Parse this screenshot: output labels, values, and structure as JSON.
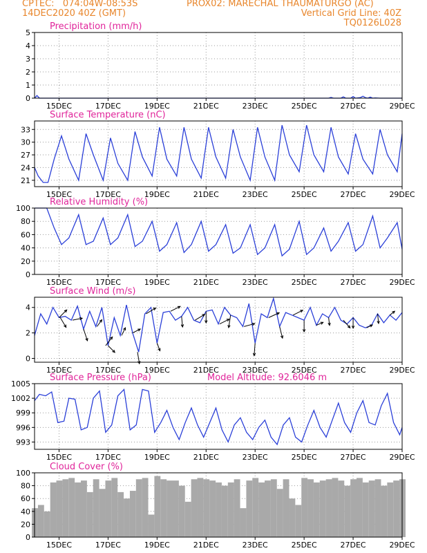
{
  "header": {
    "left_line1": "CPTEC:   074:04W-08:53S",
    "center_line1": "PROX02: MARECHAL THAUMATURGO (AC)",
    "left_line2": "14DEC2020 40Z (GMT)",
    "right_line2": "Vertical Grid Line: 40Z",
    "right_line3": "TQ0126L028"
  },
  "colors": {
    "header": "#e8862c",
    "title": "#e0249a",
    "line": "#2a3fd8",
    "arrow": "#000000",
    "bar": "#a9a9a9"
  },
  "chart_data": [
    {
      "type": "line",
      "title": "Precipitation (mm/h)",
      "ylim": [
        0,
        5
      ],
      "yticks": [
        0,
        1,
        2,
        3,
        4,
        5
      ],
      "xticks": [
        "15DEC",
        "17DEC",
        "19DEC",
        "21DEC",
        "23DEC",
        "25DEC",
        "27DEC",
        "29DEC"
      ],
      "x": [
        0,
        0.1,
        0.2,
        12.0,
        12.1,
        12.2,
        12.5,
        12.6,
        12.7,
        12.9,
        13.0,
        13.1,
        13.3,
        13.4,
        13.5,
        13.6,
        13.7,
        13.8,
        13.9,
        14.1,
        14.5,
        15
      ],
      "values": [
        0.0,
        0.2,
        0.0,
        0.0,
        0.06,
        0.0,
        0.0,
        0.1,
        0.0,
        0.0,
        0.12,
        0.0,
        0.05,
        0.15,
        0.04,
        0.0,
        0.08,
        0.0,
        0.02,
        0.0,
        0.0,
        0.0
      ]
    },
    {
      "type": "line",
      "title": "Surface Temperature (nC)",
      "ylim": [
        19.5,
        35
      ],
      "yticks": [
        21,
        24,
        27,
        30,
        33
      ],
      "xticks": [
        "15DEC",
        "17DEC",
        "19DEC",
        "21DEC",
        "23DEC",
        "25DEC",
        "27DEC",
        "29DEC"
      ],
      "x": [
        0,
        0.15,
        0.35,
        0.55,
        0.8,
        1.1,
        1.4,
        1.8,
        2.1,
        2.4,
        2.8,
        3.1,
        3.4,
        3.8,
        4.1,
        4.4,
        4.8,
        5.1,
        5.4,
        5.8,
        6.1,
        6.4,
        6.8,
        7.1,
        7.4,
        7.8,
        8.1,
        8.4,
        8.8,
        9.1,
        9.4,
        9.8,
        10.1,
        10.4,
        10.8,
        11.1,
        11.4,
        11.8,
        12.1,
        12.4,
        12.8,
        13.1,
        13.4,
        13.8,
        14.1,
        14.4,
        14.8,
        15
      ],
      "values": [
        24.0,
        22.0,
        20.5,
        20.5,
        26.0,
        31.5,
        26.0,
        21.0,
        32.0,
        27.0,
        21.0,
        31.0,
        25.0,
        21.0,
        32.5,
        26.5,
        22.0,
        33.5,
        26.0,
        22.0,
        33.5,
        26.0,
        21.5,
        33.5,
        26.5,
        21.5,
        33.0,
        26.5,
        21.0,
        33.5,
        26.5,
        21.0,
        34.0,
        27.0,
        23.0,
        34.0,
        27.0,
        23.0,
        33.5,
        26.5,
        22.5,
        32.0,
        26.0,
        22.5,
        33.0,
        27.0,
        23.0,
        32.0
      ]
    },
    {
      "type": "line",
      "title": "Relative Humidity (%)",
      "ylim": [
        0,
        100
      ],
      "yticks": [
        0,
        20,
        40,
        60,
        80,
        100
      ],
      "xticks": [
        "15DEC",
        "17DEC",
        "19DEC",
        "21DEC",
        "23DEC",
        "25DEC",
        "27DEC",
        "29DEC"
      ],
      "x": [
        0,
        0.3,
        0.5,
        0.8,
        1.1,
        1.4,
        1.8,
        2.1,
        2.4,
        2.8,
        3.1,
        3.4,
        3.8,
        4.1,
        4.4,
        4.8,
        5.1,
        5.4,
        5.8,
        6.1,
        6.4,
        6.8,
        7.1,
        7.4,
        7.8,
        8.1,
        8.4,
        8.8,
        9.1,
        9.4,
        9.8,
        10.1,
        10.4,
        10.8,
        11.1,
        11.4,
        11.8,
        12.1,
        12.4,
        12.8,
        13.1,
        13.4,
        13.8,
        14.1,
        14.4,
        14.8,
        15
      ],
      "values": [
        100,
        100,
        100,
        70,
        45,
        55,
        90,
        45,
        50,
        85,
        45,
        55,
        90,
        42,
        50,
        80,
        35,
        45,
        78,
        33,
        45,
        80,
        35,
        45,
        75,
        32,
        40,
        75,
        30,
        40,
        75,
        28,
        38,
        80,
        30,
        40,
        70,
        35,
        50,
        78,
        35,
        45,
        88,
        40,
        55,
        78,
        38
      ]
    },
    {
      "type": "line",
      "title": "Surface Wind (m/s)",
      "ylim": [
        -0.3,
        4.8
      ],
      "yticks": [
        0,
        2,
        4
      ],
      "xticks": [
        "15DEC",
        "17DEC",
        "19DEC",
        "21DEC",
        "23DEC",
        "25DEC",
        "27DEC",
        "29DEC"
      ],
      "x": [
        0,
        0.25,
        0.5,
        0.75,
        1.0,
        1.25,
        1.5,
        1.75,
        2.0,
        2.25,
        2.5,
        2.75,
        3.0,
        3.25,
        3.5,
        3.75,
        4.0,
        4.25,
        4.5,
        4.75,
        5.0,
        5.25,
        5.5,
        5.75,
        6.0,
        6.25,
        6.5,
        6.75,
        7.0,
        7.25,
        7.5,
        7.75,
        8.0,
        8.25,
        8.5,
        8.75,
        9.0,
        9.25,
        9.5,
        9.75,
        10.0,
        10.25,
        10.5,
        10.75,
        11.0,
        11.25,
        11.5,
        11.75,
        12.0,
        12.25,
        12.5,
        12.75,
        13.0,
        13.25,
        13.5,
        13.75,
        14.0,
        14.25,
        14.5,
        14.75,
        15
      ],
      "values": [
        1.8,
        3.5,
        2.7,
        4.0,
        3.2,
        3.3,
        3.0,
        4.1,
        2.3,
        3.7,
        2.5,
        4.0,
        1.0,
        3.2,
        1.8,
        4.2,
        2.0,
        0.5,
        3.5,
        4.0,
        1.2,
        3.6,
        3.7,
        3.0,
        3.3,
        4.0,
        3.0,
        2.8,
        3.7,
        3.8,
        2.7,
        4.0,
        3.4,
        3.2,
        2.5,
        4.3,
        1.2,
        3.5,
        3.2,
        4.7,
        2.5,
        3.6,
        3.4,
        3.2,
        3.0,
        4.0,
        2.6,
        3.5,
        3.2,
        4.0,
        3.0,
        2.7,
        3.2,
        2.6,
        2.4,
        2.6,
        3.5,
        2.8,
        3.4,
        3.0,
        3.6
      ],
      "arrows": [
        {
          "x": 1.0,
          "u": 0.8,
          "v": 0.8
        },
        {
          "x": 1.05,
          "u": 0.6,
          "v": -1.0
        },
        {
          "x": 1.55,
          "u": 1.0,
          "v": 0.2
        },
        {
          "x": 2.0,
          "u": 0.4,
          "v": -1.2
        },
        {
          "x": 2.55,
          "u": 0.5,
          "v": 0.7
        },
        {
          "x": 2.9,
          "u": 0.7,
          "v": 0.9
        },
        {
          "x": 3.0,
          "u": 0.7,
          "v": -0.7
        },
        {
          "x": 3.55,
          "u": 0.4,
          "v": 0.8
        },
        {
          "x": 4.0,
          "u": 0.8,
          "v": 0.4
        },
        {
          "x": 4.2,
          "u": 0.2,
          "v": -1.2
        },
        {
          "x": 4.55,
          "u": 1.0,
          "v": 0.6
        },
        {
          "x": 5.0,
          "u": 0.3,
          "v": -0.8
        },
        {
          "x": 5.55,
          "u": 1.0,
          "v": 0.5
        },
        {
          "x": 6.0,
          "u": 0.1,
          "v": -1.1
        },
        {
          "x": 6.55,
          "u": 1.0,
          "v": 0.6
        },
        {
          "x": 7.0,
          "u": 0.0,
          "v": -1.2
        },
        {
          "x": 7.55,
          "u": 1.0,
          "v": 0.5
        },
        {
          "x": 8.0,
          "u": -0.2,
          "v": -1.3
        },
        {
          "x": 8.55,
          "u": 1.1,
          "v": 0.3
        },
        {
          "x": 9.0,
          "u": -0.1,
          "v": -1.3
        },
        {
          "x": 9.55,
          "u": 1.1,
          "v": 0.5
        },
        {
          "x": 10.0,
          "u": 0.3,
          "v": -1.2
        },
        {
          "x": 10.55,
          "u": 1.0,
          "v": 0.5
        },
        {
          "x": 11.0,
          "u": 0.0,
          "v": -1.2
        },
        {
          "x": 11.5,
          "u": 0.7,
          "v": 0.3
        },
        {
          "x": 12.0,
          "u": 0.1,
          "v": -0.8
        },
        {
          "x": 12.6,
          "u": 0.7,
          "v": -0.8
        },
        {
          "x": 13.0,
          "u": 0.0,
          "v": -1.1
        },
        {
          "x": 13.55,
          "u": 0.6,
          "v": 0.3
        },
        {
          "x": 14.0,
          "u": 0.1,
          "v": -1.0
        },
        {
          "x": 14.5,
          "u": 0.5,
          "v": 0.4
        }
      ]
    },
    {
      "type": "line",
      "title": "Surface Pressure (hPa)",
      "annotation": "Model Altitude: 92.6046 m",
      "ylim": [
        991.5,
        1005
      ],
      "yticks": [
        993,
        996,
        999,
        1002,
        1005
      ],
      "xticks": [
        "15DEC",
        "17DEC",
        "19DEC",
        "21DEC",
        "23DEC",
        "25DEC",
        "27DEC",
        "29DEC"
      ],
      "x": [
        0,
        0.2,
        0.45,
        0.7,
        0.95,
        1.2,
        1.4,
        1.65,
        1.9,
        2.15,
        2.4,
        2.65,
        2.9,
        3.15,
        3.4,
        3.65,
        3.9,
        4.15,
        4.4,
        4.65,
        4.9,
        5.15,
        5.4,
        5.65,
        5.9,
        6.15,
        6.4,
        6.65,
        6.9,
        7.15,
        7.4,
        7.65,
        7.9,
        8.15,
        8.4,
        8.65,
        8.9,
        9.15,
        9.4,
        9.65,
        9.9,
        10.15,
        10.4,
        10.65,
        10.9,
        11.15,
        11.4,
        11.65,
        11.9,
        12.15,
        12.4,
        12.65,
        12.9,
        13.15,
        13.4,
        13.65,
        13.9,
        14.15,
        14.4,
        14.65,
        14.9,
        15
      ],
      "values": [
        1001.5,
        1002.8,
        1002.5,
        1003.3,
        997.0,
        997.3,
        1002.0,
        1001.8,
        995.5,
        996.0,
        1002.0,
        1003.5,
        995.0,
        996.5,
        1002.5,
        1003.8,
        995.5,
        996.5,
        1003.8,
        1003.5,
        995.0,
        997.0,
        999.5,
        996.0,
        993.5,
        997.0,
        1000.0,
        996.5,
        994.0,
        997.0,
        1000.0,
        995.5,
        993.0,
        996.5,
        998.0,
        995.0,
        993.5,
        996.0,
        997.5,
        994.0,
        992.5,
        996.5,
        998.0,
        994.0,
        993.0,
        996.5,
        999.5,
        996.0,
        994.0,
        997.5,
        1001.0,
        997.0,
        995.0,
        999.0,
        1001.5,
        997.0,
        996.5,
        1000.5,
        1003.0,
        997.0,
        994.5,
        996.0
      ]
    },
    {
      "type": "bar",
      "title": "Cloud Cover (%)",
      "ylim": [
        0,
        100
      ],
      "yticks": [
        0,
        20,
        40,
        60,
        80,
        100
      ],
      "xticks": [
        "15DEC",
        "17DEC",
        "19DEC",
        "21DEC",
        "23DEC",
        "25DEC",
        "27DEC",
        "29DEC"
      ],
      "x": [
        0,
        0.25,
        0.5,
        0.75,
        1.0,
        1.25,
        1.5,
        1.75,
        2.0,
        2.25,
        2.5,
        2.75,
        3.0,
        3.25,
        3.5,
        3.75,
        4.0,
        4.25,
        4.5,
        4.75,
        5.0,
        5.25,
        5.5,
        5.75,
        6.0,
        6.25,
        6.5,
        6.75,
        7.0,
        7.25,
        7.5,
        7.75,
        8.0,
        8.25,
        8.5,
        8.75,
        9.0,
        9.25,
        9.5,
        9.75,
        10.0,
        10.25,
        10.5,
        10.75,
        11.0,
        11.25,
        11.5,
        11.75,
        12.0,
        12.25,
        12.5,
        12.75,
        13.0,
        13.25,
        13.5,
        13.75,
        14.0,
        14.25,
        14.5,
        14.75,
        15
      ],
      "values": [
        45,
        50,
        40,
        85,
        88,
        90,
        92,
        85,
        88,
        70,
        90,
        75,
        88,
        92,
        70,
        60,
        72,
        90,
        92,
        35,
        95,
        90,
        88,
        88,
        80,
        55,
        90,
        92,
        90,
        88,
        85,
        80,
        85,
        90,
        45,
        88,
        92,
        85,
        88,
        90,
        75,
        90,
        60,
        50,
        92,
        90,
        85,
        88,
        90,
        92,
        88,
        80,
        90,
        92,
        85,
        88,
        90,
        80,
        85,
        88,
        90
      ]
    }
  ]
}
